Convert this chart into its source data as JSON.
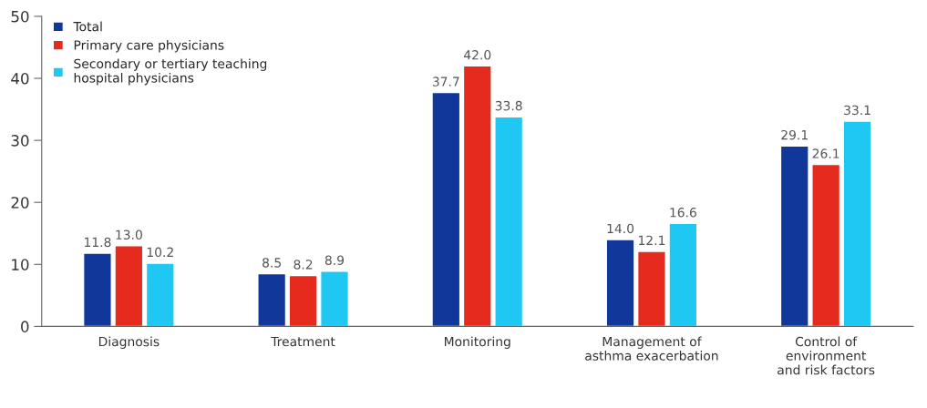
{
  "chart_data": {
    "type": "bar",
    "categories": [
      "Diagnosis",
      "Treatment",
      "Monitoring",
      "Management of\nasthma exacerbation",
      "Control of\nenvironment\nand risk factors"
    ],
    "series": [
      {
        "name": "Total",
        "color": "#12379b",
        "values": [
          11.8,
          8.5,
          37.7,
          14.0,
          29.1
        ],
        "value_labels": [
          "11.8",
          "8.5",
          "37.7",
          "14.0",
          "29.1"
        ]
      },
      {
        "name": "Primary care physicians",
        "color": "#e52b1e",
        "values": [
          13.0,
          8.2,
          42.0,
          12.1,
          26.1
        ],
        "value_labels": [
          "13.0",
          "8.2",
          "42.0",
          "12.1",
          "26.1"
        ]
      },
      {
        "name": "Secondary or tertiary teaching\nhospital physicians",
        "color": "#1ec8f2",
        "values": [
          10.2,
          8.9,
          33.8,
          16.6,
          33.1
        ],
        "value_labels": [
          "10.2",
          "8.9",
          "33.8",
          "16.6",
          "33.1"
        ]
      }
    ],
    "ylim": [
      0,
      50
    ],
    "yticks": [
      0,
      10,
      20,
      30,
      40,
      50
    ],
    "grid": false,
    "legend": "top left"
  }
}
